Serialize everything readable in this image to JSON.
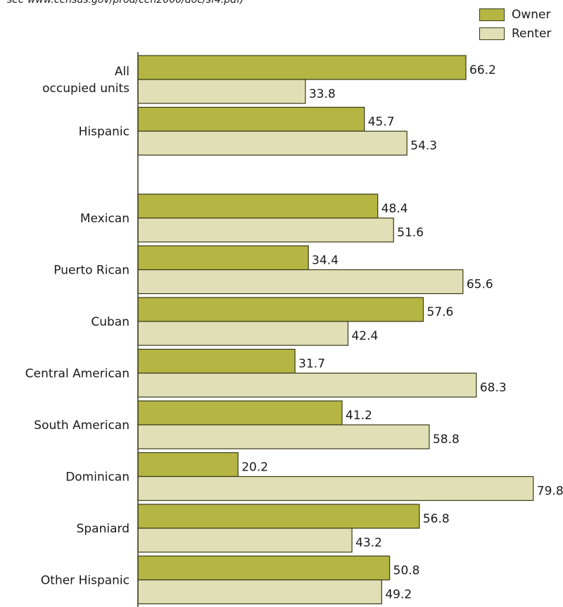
{
  "chart_data": {
    "type": "bar",
    "orientation": "horizontal",
    "note": "see www.census.gov/prod/cen2000/doc/sf4.pdf)",
    "categories": [
      [
        "All",
        "occupied units"
      ],
      [
        "Hispanic"
      ],
      [
        "Mexican"
      ],
      [
        "Puerto Rican"
      ],
      [
        "Cuban"
      ],
      [
        "Central American"
      ],
      [
        "South American"
      ],
      [
        "Dominican"
      ],
      [
        "Spaniard"
      ],
      [
        "Other Hispanic"
      ]
    ],
    "series": [
      {
        "name": "Owner",
        "color": "#b5b543",
        "values": [
          66.2,
          45.7,
          48.4,
          34.4,
          57.6,
          31.7,
          41.2,
          20.2,
          56.8,
          50.8
        ]
      },
      {
        "name": "Renter",
        "color": "#e0dfb5",
        "values": [
          33.8,
          54.3,
          51.6,
          65.6,
          42.4,
          68.3,
          58.8,
          79.8,
          43.2,
          49.2
        ]
      }
    ],
    "xlim": [
      0,
      100
    ],
    "legend": "top-right",
    "grid": false
  }
}
